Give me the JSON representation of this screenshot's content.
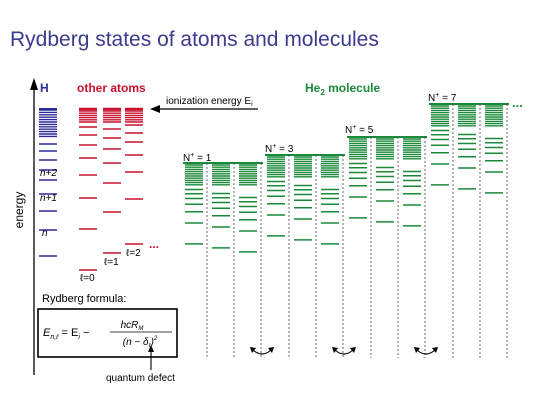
{
  "title": "Rydberg states of atoms and molecules",
  "colors": {
    "title": "#3b3b8f",
    "hydrogen": "#2b2b9a",
    "atoms": "#c8102e",
    "molecule": "#1a8a3a",
    "text": "#000000"
  },
  "labels": {
    "h": "H",
    "other_atoms": "other atoms",
    "molecule_pre": "He",
    "molecule_sub": "2",
    "molecule_post": " molecule",
    "ionization_pre": "ionization energy E",
    "ionization_sub": "i",
    "energy": "energy",
    "n2": "n+2",
    "n1": "n+1",
    "n": "n",
    "l0": "ℓ=0",
    "l1": "ℓ=1",
    "l2": "ℓ=2",
    "ellipsis_atoms": "...",
    "ellipsis_mol": "...",
    "rydberg_formula": "Rydberg formula:",
    "formula_lhs": "E",
    "formula_lhs_sub": "n,ℓ",
    "formula_eq": " = E",
    "formula_i": "i",
    "formula_minus": " −",
    "formula_num": "hcR",
    "formula_num_sub": "M",
    "formula_den": "(n − δ",
    "formula_den_sub": "ℓ",
    "formula_den_end": ")",
    "formula_den_sq": "2",
    "quantum_defect": "quantum defect"
  },
  "ion_labels": [
    {
      "pre": "N",
      "sup": "+",
      "post": " = 1"
    },
    {
      "pre": "N",
      "sup": "+",
      "post": " = 3"
    },
    {
      "pre": "N",
      "sup": "+",
      "post": " = 5"
    },
    {
      "pre": "N",
      "sup": "+",
      "post": " = 7"
    }
  ]
}
